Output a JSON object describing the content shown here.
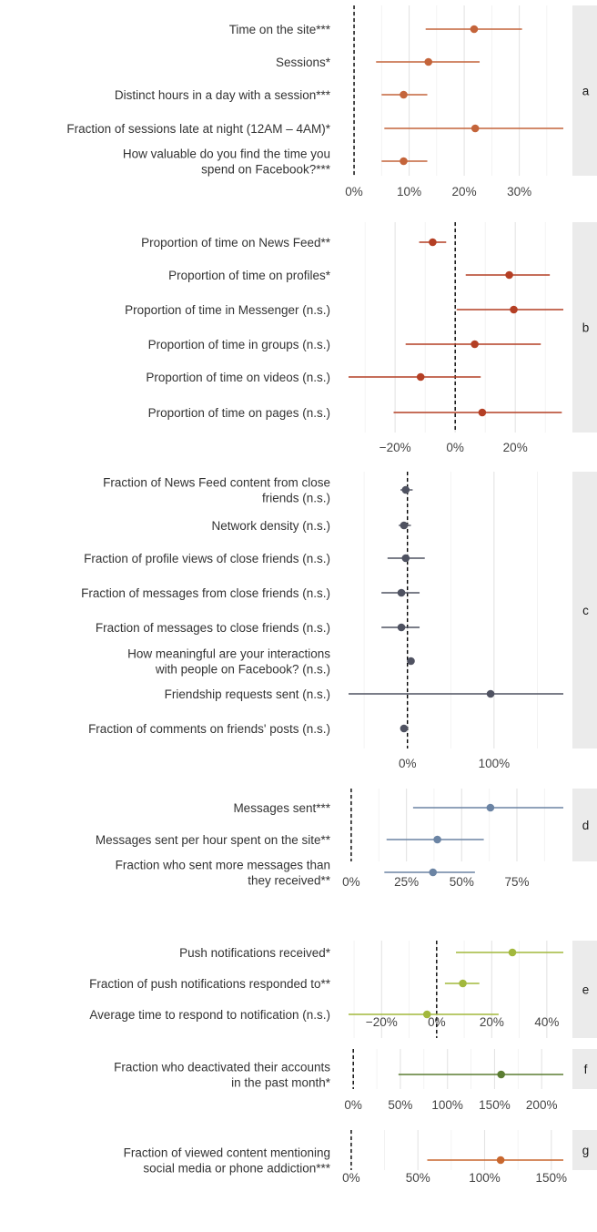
{
  "chart_data": [
    {
      "type": "forest",
      "panel": "a",
      "color": "#c4643a",
      "ticks": [
        "0%",
        "10%",
        "20%",
        "30%"
      ],
      "tick_values": [
        0,
        10,
        20,
        30
      ],
      "xlim": [
        -1,
        38
      ],
      "rows": [
        {
          "label_lines": [
            "Time on the site***"
          ],
          "est": 21.8,
          "lo": 13,
          "hi": 30.5
        },
        {
          "label_lines": [
            "Sessions*"
          ],
          "est": 13.5,
          "lo": 4,
          "hi": 22.8
        },
        {
          "label_lines": [
            "Distinct hours in a day with a session***"
          ],
          "est": 9,
          "lo": 5,
          "hi": 13.3
        },
        {
          "label_lines": [
            "Fraction of sessions late at night (12AM – 4AM)*"
          ],
          "est": 22,
          "lo": 5.5,
          "hi": 38
        },
        {
          "label_lines": [
            "How valuable do you find the time you",
            "spend on Facebook?***"
          ],
          "est": 9,
          "lo": 5,
          "hi": 13.3
        }
      ]
    },
    {
      "type": "forest",
      "panel": "b",
      "color": "#b43f24",
      "ticks": [
        "−20%",
        "0%",
        "20%"
      ],
      "tick_values": [
        -20,
        0,
        20
      ],
      "xlim": [
        -35.5,
        36
      ],
      "rows": [
        {
          "label_lines": [
            "Proportion of time on News Feed**"
          ],
          "est": -7.5,
          "lo": -12,
          "hi": -3
        },
        {
          "label_lines": [
            "Proportion of time on profiles*"
          ],
          "est": 18,
          "lo": 3.5,
          "hi": 31.5
        },
        {
          "label_lines": [
            "Proportion of time in Messenger (n.s.)"
          ],
          "est": 19.5,
          "lo": 0.5,
          "hi": 36
        },
        {
          "label_lines": [
            "Proportion of time in groups (n.s.)"
          ],
          "est": 6.5,
          "lo": -16.5,
          "hi": 28.5
        },
        {
          "label_lines": [
            "Proportion of time on videos (n.s.)"
          ],
          "est": -11.5,
          "lo": -35.5,
          "hi": 8.5
        },
        {
          "label_lines": [
            "Proportion of time on pages (n.s.)"
          ],
          "est": 9,
          "lo": -20.5,
          "hi": 35.5
        }
      ]
    },
    {
      "type": "forest",
      "panel": "c",
      "color": "#4f5261",
      "ticks": [
        "0%",
        "100%"
      ],
      "tick_values": [
        0,
        100
      ],
      "xlim": [
        -68,
        180
      ],
      "rows": [
        {
          "label_lines": [
            "Fraction of News Feed content from close",
            "friends (n.s.)"
          ],
          "est": -2,
          "lo": -8,
          "hi": 6
        },
        {
          "label_lines": [
            "Network density (n.s.)"
          ],
          "est": -4,
          "lo": -10,
          "hi": 4
        },
        {
          "label_lines": [
            "Fraction of profile views of close friends (n.s.)"
          ],
          "est": -2,
          "lo": -23,
          "hi": 20
        },
        {
          "label_lines": [
            "Fraction of messages from close friends (n.s.)"
          ],
          "est": -7,
          "lo": -30,
          "hi": 14
        },
        {
          "label_lines": [
            "Fraction of messages to close friends (n.s.)"
          ],
          "est": -7,
          "lo": -30,
          "hi": 14
        },
        {
          "label_lines": [
            "How meaningful are your interactions",
            "with people on Facebook? (n.s.)"
          ],
          "est": 4,
          "lo": 2,
          "hi": 6
        },
        {
          "label_lines": [
            "Friendship requests sent (n.s.)"
          ],
          "est": 96,
          "lo": -68,
          "hi": 180
        },
        {
          "label_lines": [
            "Fraction of comments on friends' posts (n.s.)"
          ],
          "est": -4,
          "lo": -7,
          "hi": -1
        }
      ]
    },
    {
      "type": "forest",
      "panel": "d",
      "color": "#6b84a4",
      "ticks": [
        "0%",
        "25%",
        "50%",
        "75%"
      ],
      "tick_values": [
        0,
        25,
        50,
        75
      ],
      "xlim": [
        -1.2,
        96
      ],
      "rows": [
        {
          "label_lines": [
            "Messages sent***"
          ],
          "est": 63,
          "lo": 28,
          "hi": 96
        },
        {
          "label_lines": [
            "Messages sent per hour spent on the site**"
          ],
          "est": 39,
          "lo": 16,
          "hi": 60
        },
        {
          "label_lines": [
            "Fraction who sent more messages than",
            "they received**"
          ],
          "est": 37,
          "lo": 15,
          "hi": 56
        }
      ]
    },
    {
      "type": "forest",
      "panel": "e",
      "color": "#a2b83c",
      "ticks": [
        "−20%",
        "0%",
        "20%",
        "40%"
      ],
      "tick_values": [
        -20,
        0,
        20,
        40
      ],
      "xlim": [
        -32,
        46
      ],
      "rows": [
        {
          "label_lines": [
            "Push notifications received*"
          ],
          "est": 27.5,
          "lo": 7,
          "hi": 46
        },
        {
          "label_lines": [
            "Fraction of push notifications responded to**"
          ],
          "est": 9.5,
          "lo": 3,
          "hi": 15.5
        },
        {
          "label_lines": [
            "Average time to respond to notification (n.s.)"
          ],
          "est": -3.5,
          "lo": -32,
          "hi": 22.5
        }
      ]
    },
    {
      "type": "forest",
      "panel": "f",
      "color": "#5b7d32",
      "ticks": [
        "0%",
        "50%",
        "100%",
        "150%",
        "200%"
      ],
      "tick_values": [
        0,
        50,
        100,
        150,
        200
      ],
      "xlim": [
        -5,
        223
      ],
      "rows": [
        {
          "label_lines": [
            "Fraction who deactivated their accounts",
            "in the past month*"
          ],
          "est": 157,
          "lo": 48,
          "hi": 223
        }
      ]
    },
    {
      "type": "forest",
      "panel": "g",
      "color": "#c8672e",
      "ticks": [
        "0%",
        "50%",
        "100%",
        "150%"
      ],
      "tick_values": [
        0,
        50,
        100,
        150
      ],
      "xlim": [
        -2,
        159
      ],
      "rows": [
        {
          "label_lines": [
            "Fraction of viewed content mentioning",
            "social media or phone addiction***"
          ],
          "est": 112,
          "lo": 57,
          "hi": 159
        }
      ]
    }
  ]
}
